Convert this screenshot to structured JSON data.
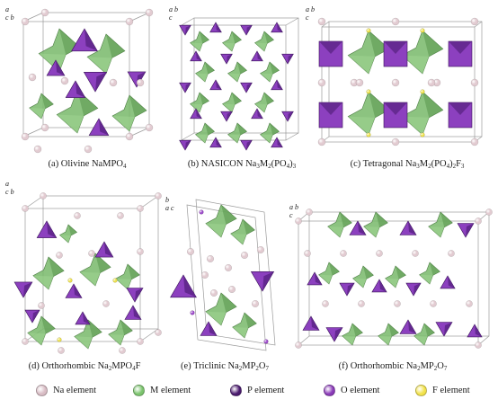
{
  "panels": [
    {
      "id": "a",
      "prefix": "(a) Olivine ",
      "formula": [
        [
          "NaMPO",
          ""
        ],
        [
          "4",
          "sub"
        ]
      ]
    },
    {
      "id": "b",
      "prefix": "(b) NASICON ",
      "formula": [
        [
          "Na",
          ""
        ],
        [
          "3",
          "sub"
        ],
        [
          "M",
          ""
        ],
        [
          "2",
          "sub"
        ],
        [
          "(PO",
          ""
        ],
        [
          "4",
          "sub"
        ],
        [
          ")",
          ""
        ],
        [
          "3",
          "sub"
        ]
      ]
    },
    {
      "id": "c",
      "prefix": "(c) Tetragonal ",
      "formula": [
        [
          "Na",
          ""
        ],
        [
          "3",
          "sub"
        ],
        [
          "M",
          ""
        ],
        [
          "2",
          "sub"
        ],
        [
          "(PO",
          ""
        ],
        [
          "4",
          "sub"
        ],
        [
          ")",
          ""
        ],
        [
          "2",
          "sub"
        ],
        [
          "F",
          ""
        ],
        [
          "3",
          "sub"
        ]
      ]
    },
    {
      "id": "d",
      "prefix": "(d) Orthorhombic ",
      "formula": [
        [
          "Na",
          ""
        ],
        [
          "2",
          "sub"
        ],
        [
          "MPO",
          ""
        ],
        [
          "4",
          "sub"
        ],
        [
          "F",
          ""
        ]
      ]
    },
    {
      "id": "e",
      "prefix": "(e) Triclinic ",
      "formula": [
        [
          "Na",
          ""
        ],
        [
          "2",
          "sub"
        ],
        [
          "MP",
          ""
        ],
        [
          "2",
          "sub"
        ],
        [
          "O",
          ""
        ],
        [
          "7",
          "sub"
        ]
      ]
    },
    {
      "id": "f",
      "prefix": "(f) Orthorhombic ",
      "formula": [
        [
          "Na",
          ""
        ],
        [
          "2",
          "sub"
        ],
        [
          "MP",
          ""
        ],
        [
          "2",
          "sub"
        ],
        [
          "O",
          ""
        ],
        [
          "7",
          "sub"
        ]
      ]
    }
  ],
  "axes": {
    "a": {
      "top": "a",
      "mid": "c",
      "right": "b"
    },
    "b": {
      "top": "a",
      "mid": "c",
      "right": "b"
    },
    "c": {
      "top": "a",
      "mid": "c",
      "right": "b"
    },
    "d": {
      "top": "a",
      "mid": "c",
      "right": "b"
    },
    "e": {
      "top": "a",
      "mid": "c",
      "right": "b"
    },
    "f": {
      "top": "a",
      "mid": "c",
      "right": "b"
    }
  },
  "legend": [
    {
      "label": "Na element",
      "color": "#d8bcc4"
    },
    {
      "label": "M element",
      "color": "#7bc46d"
    },
    {
      "label": "P element",
      "color": "#4a1a6e"
    },
    {
      "label": "O element",
      "color": "#8a3ab8"
    },
    {
      "label": "F element",
      "color": "#f2e24a"
    }
  ],
  "colors": {
    "na": "#e2cbd1",
    "m": "#78b86a",
    "m_dark": "#5d9a52",
    "p": "#5c2487",
    "p_light": "#8c40bf",
    "o": "#9a48c8",
    "f": "#ece04a",
    "cell": "#9a9a9a"
  }
}
